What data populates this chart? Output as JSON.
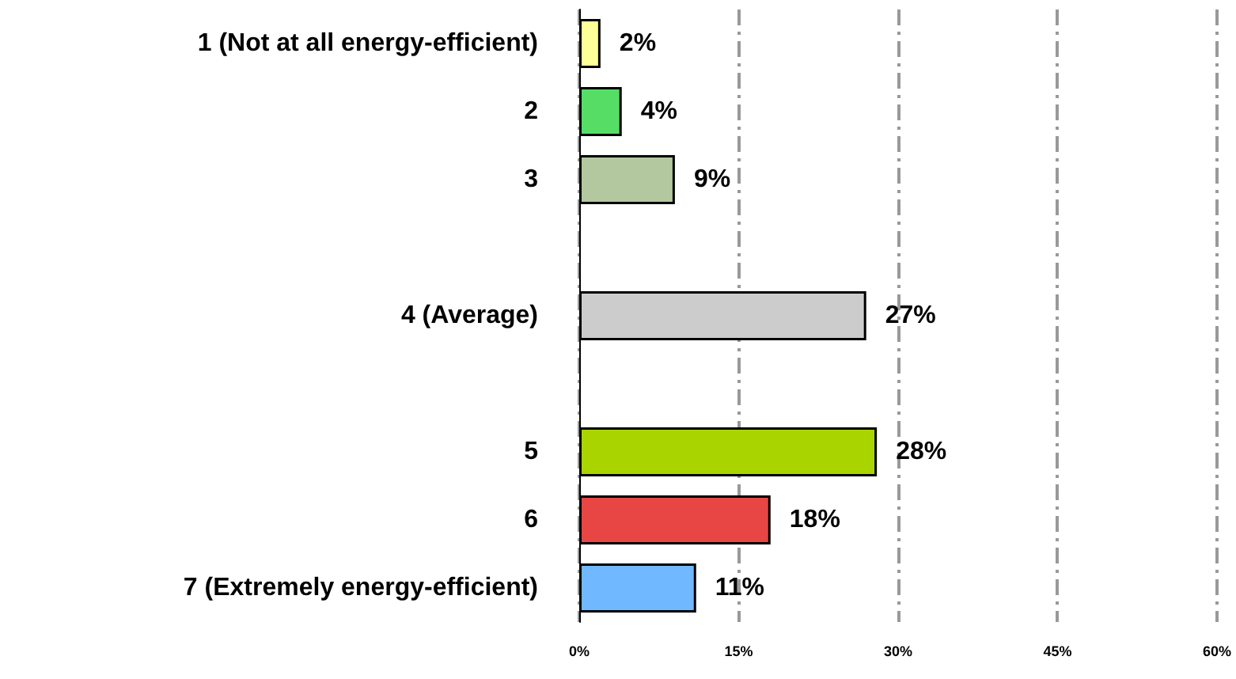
{
  "chart_data": {
    "type": "bar",
    "orientation": "horizontal",
    "categories": [
      "1 (Not at all energy-efficient)",
      "2",
      "3",
      null,
      "4 (Average)",
      null,
      "5",
      "6",
      "7 (Extremely energy-efficient)"
    ],
    "values": [
      2,
      4,
      9,
      null,
      27,
      null,
      28,
      18,
      11
    ],
    "colors": [
      "#ffff99",
      "#55dd66",
      "#b3c89f",
      "#ffffff",
      "#cccccc",
      "#ffffff",
      "#aad400",
      "#e84545",
      "#70b8ff"
    ],
    "value_labels": [
      "2%",
      "4%",
      "9%",
      null,
      "27%",
      null,
      "28%",
      "18%",
      "11%"
    ],
    "xlim": [
      0,
      60
    ],
    "xticks": [
      {
        "value": 0,
        "label": "0%"
      },
      {
        "value": 15,
        "label": "15%"
      },
      {
        "value": 30,
        "label": "30%"
      },
      {
        "value": 45,
        "label": "45%"
      },
      {
        "value": 60,
        "label": "60%"
      }
    ],
    "grid": "x"
  }
}
